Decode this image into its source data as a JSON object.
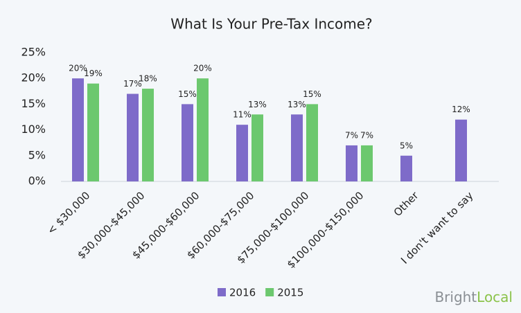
{
  "chart_data": {
    "type": "bar",
    "title": "What Is Your Pre-Tax Income?",
    "categories": [
      "< $30,000",
      "$30,000-$45,000",
      "$45,000-$60,000",
      "$60,000-$75,000",
      "$75,000-$100,000",
      "$100,000-$150,000",
      "Other",
      "I don't want to say"
    ],
    "series": [
      {
        "name": "2016",
        "color": "#7e6bc9",
        "values": [
          20,
          17,
          15,
          11,
          13,
          7,
          5,
          12
        ],
        "value_labels": [
          "20%",
          "17%",
          "15%",
          "11%",
          "13%",
          "7%",
          "5%",
          "12%"
        ]
      },
      {
        "name": "2015",
        "color": "#6cc86e",
        "values": [
          19,
          18,
          20,
          13,
          15,
          7,
          null,
          null
        ],
        "value_labels": [
          "19%",
          "18%",
          "20%",
          "13%",
          "15%",
          "7%",
          null,
          null
        ]
      }
    ],
    "ylim": [
      0,
      25
    ],
    "yticks": [
      {
        "value": 0,
        "label": "0%"
      },
      {
        "value": 5,
        "label": "5%"
      },
      {
        "value": 10,
        "label": "10%"
      },
      {
        "value": 15,
        "label": "15%"
      },
      {
        "value": 20,
        "label": "20%"
      },
      {
        "value": 25,
        "label": "25%"
      }
    ],
    "grid": false,
    "legend": "bottom"
  },
  "logo": [
    "Bright",
    "Local"
  ]
}
